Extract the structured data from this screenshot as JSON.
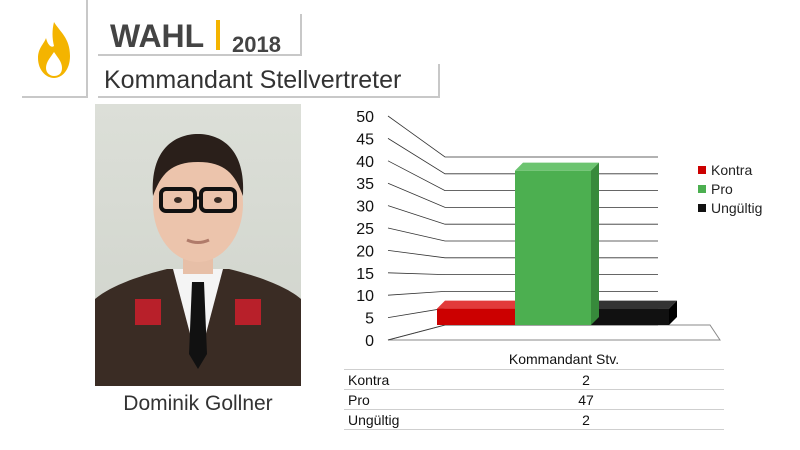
{
  "header": {
    "title": "WAHL",
    "year": "2018",
    "subtitle": "Kommandant Stellvertreter"
  },
  "logo": {
    "icon": "flame-icon",
    "color": "#f4b400"
  },
  "person": {
    "name": "Dominik Gollner"
  },
  "chart_data": {
    "type": "bar",
    "categories": [
      "Kommandant Stv."
    ],
    "series": [
      {
        "name": "Kontra",
        "values": [
          2
        ],
        "color": "#cc0000"
      },
      {
        "name": "Pro",
        "values": [
          47
        ],
        "color": "#4caf50"
      },
      {
        "name": "Ungültig",
        "values": [
          2
        ],
        "color": "#111111"
      }
    ],
    "ylim": [
      0,
      50
    ],
    "yticks": [
      "0",
      "5",
      "10",
      "15",
      "20",
      "25",
      "30",
      "35",
      "40",
      "45",
      "50"
    ],
    "grid": true,
    "legend": "right"
  },
  "table": {
    "header": "Kommandant Stv.",
    "rows": [
      {
        "label": "Kontra",
        "value": "2"
      },
      {
        "label": "Pro",
        "value": "47"
      },
      {
        "label": "Ungültig",
        "value": "2"
      }
    ]
  }
}
